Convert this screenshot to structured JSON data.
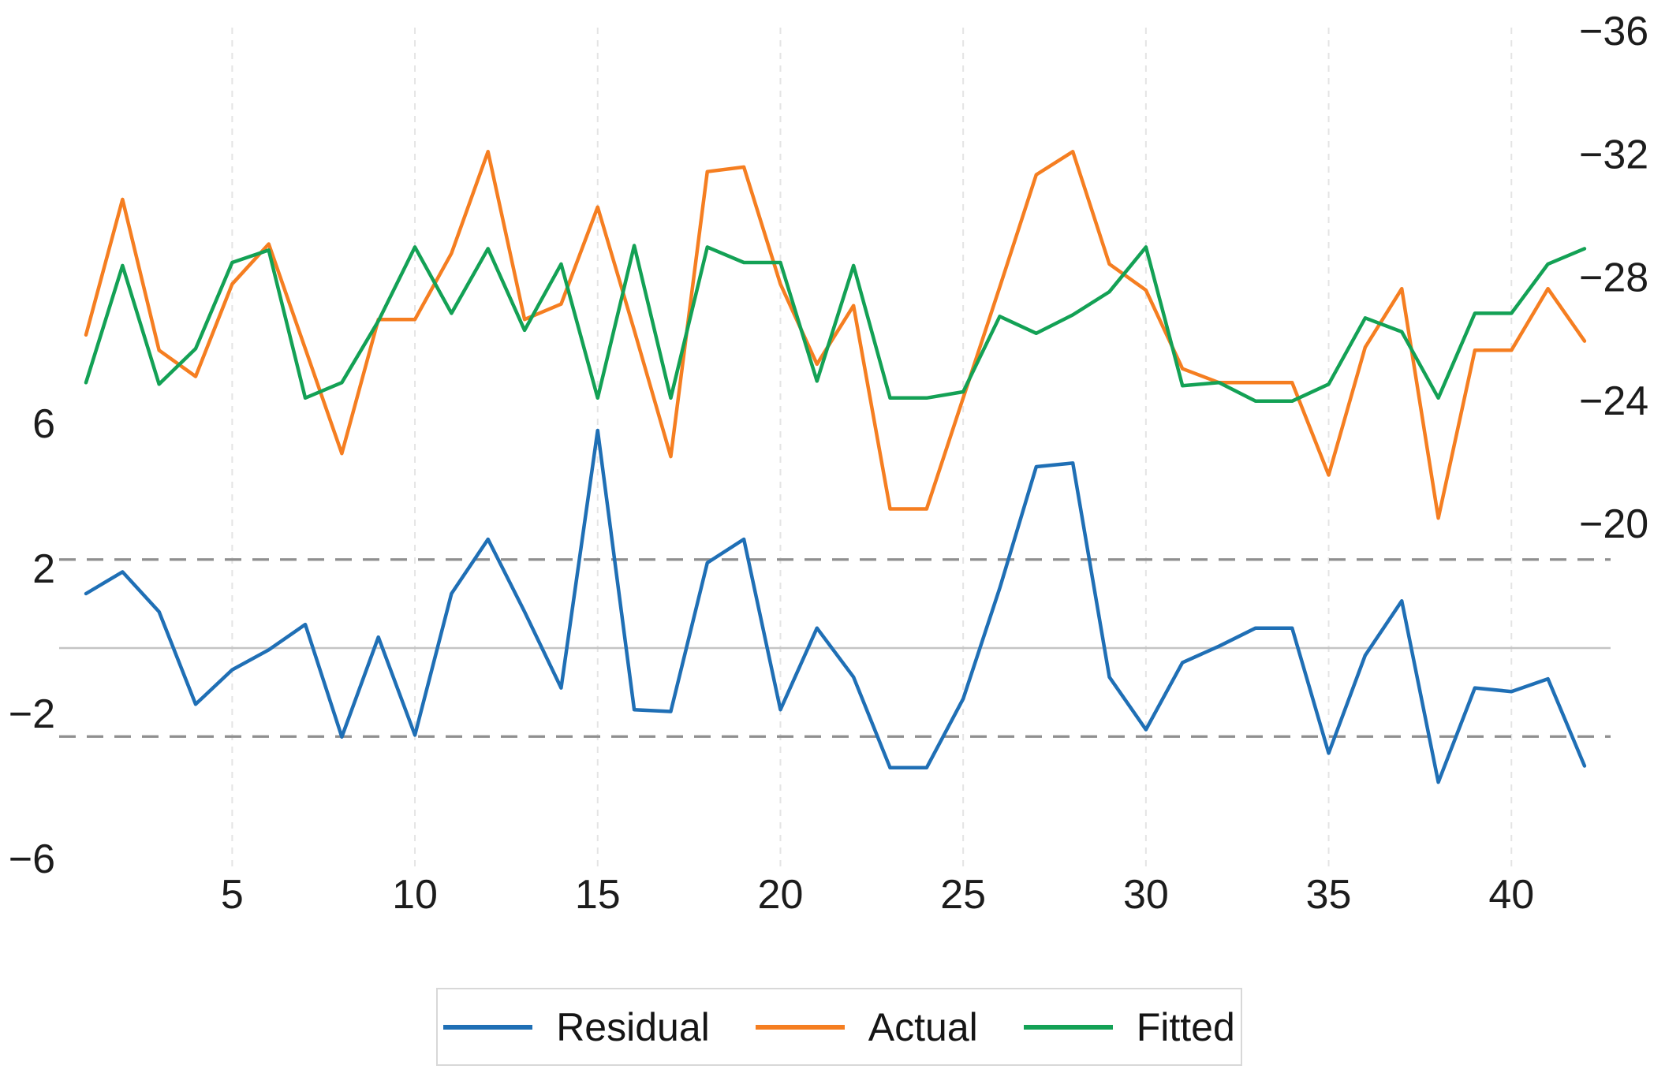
{
  "chart_data": {
    "type": "line",
    "title": "",
    "x": [
      1,
      2,
      3,
      4,
      5,
      6,
      7,
      8,
      9,
      10,
      11,
      12,
      13,
      14,
      15,
      16,
      17,
      18,
      19,
      20,
      21,
      22,
      23,
      24,
      25,
      26,
      27,
      28,
      29,
      30,
      31,
      32,
      33,
      34,
      35,
      36,
      37,
      38,
      39,
      40,
      41,
      42
    ],
    "x_axis": {
      "tick_values": [
        5,
        10,
        15,
        20,
        25,
        30,
        35,
        40
      ],
      "tick_labels": [
        "5",
        "10",
        "15",
        "20",
        "25",
        "30",
        "35",
        "40"
      ]
    },
    "left_axis": {
      "tick_values": [
        6,
        2,
        -2,
        -6
      ],
      "tick_labels": [
        "6",
        "2",
        "−2",
        "−6"
      ],
      "range": [
        -7.5,
        7.5
      ],
      "zero_line": 0,
      "band_value": 2.44,
      "band_style": "dashed"
    },
    "right_axis": {
      "tick_values": [
        -36,
        -32,
        -28,
        -24,
        -20
      ],
      "tick_labels": [
        "−36",
        "−32",
        "−28",
        "−24",
        "−20"
      ],
      "inverted": true,
      "range": [
        -36,
        -20
      ]
    },
    "grid": {
      "vertical_dashed": true,
      "horizontal": "zero-and-bands-only"
    },
    "series": [
      {
        "name": "Residual",
        "color": "#1f6fb5",
        "axis": "left",
        "values": [
          1.5,
          2.1,
          1.0,
          -1.55,
          -0.6,
          -0.05,
          0.65,
          -2.45,
          0.3,
          -2.4,
          1.5,
          3.0,
          1.0,
          -1.1,
          6.0,
          -1.7,
          -1.75,
          2.35,
          3.0,
          -1.7,
          0.55,
          -0.8,
          -3.3,
          -3.3,
          -1.4,
          1.65,
          5.0,
          5.1,
          -0.8,
          -2.25,
          -0.4,
          0.05,
          0.55,
          0.55,
          -2.9,
          -0.2,
          1.3,
          -3.7,
          -1.1,
          -1.2,
          -0.85,
          -3.25
        ]
      },
      {
        "name": "Actual",
        "color": "#f57e21",
        "axis": "right",
        "values": [
          -26.15,
          -30.55,
          -25.65,
          -24.8,
          -27.8,
          -29.1,
          -25.7,
          -22.3,
          -26.65,
          -26.65,
          -28.8,
          -32.1,
          -26.65,
          -27.15,
          -30.3,
          -26.3,
          -22.2,
          -31.45,
          -31.6,
          -27.8,
          -25.2,
          -27.1,
          -20.5,
          -20.5,
          -24.1,
          -27.7,
          -31.35,
          -32.1,
          -28.45,
          -27.6,
          -25.05,
          -24.6,
          -24.6,
          -24.6,
          -21.6,
          -25.75,
          -27.65,
          -20.2,
          -25.65,
          -25.65,
          -27.65,
          -25.95
        ]
      },
      {
        "name": "Fitted",
        "color": "#13a155",
        "axis": "right",
        "values": [
          -24.6,
          -28.4,
          -24.55,
          -25.7,
          -28.5,
          -28.9,
          -24.1,
          -24.6,
          -26.6,
          -29.0,
          -26.85,
          -28.95,
          -26.3,
          -28.45,
          -24.1,
          -29.05,
          -24.1,
          -29.0,
          -28.5,
          -28.5,
          -24.65,
          -28.4,
          -24.1,
          -24.1,
          -24.3,
          -26.75,
          -26.2,
          -26.8,
          -27.55,
          -29.0,
          -24.5,
          -24.6,
          -24.0,
          -24.0,
          -24.55,
          -26.7,
          -26.25,
          -24.1,
          -26.85,
          -26.85,
          -28.45,
          -28.95
        ]
      }
    ],
    "legend": {
      "position": "bottom",
      "items": [
        {
          "label": "Residual",
          "color": "#1f6fb5"
        },
        {
          "label": "Actual",
          "color": "#f57e21"
        },
        {
          "label": "Fitted",
          "color": "#13a155"
        }
      ]
    },
    "colors": {
      "vertical_grid": "#e4e4e4",
      "band_line": "#8f8f8f",
      "zero_line": "#c4c4c4",
      "tick_text": "#1c1c1c"
    }
  }
}
